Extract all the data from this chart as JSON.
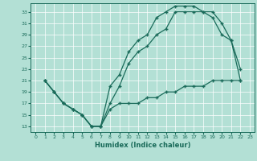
{
  "xlabel": "Humidex (Indice chaleur)",
  "bg_color": "#b3e0d5",
  "line_color": "#1a6b5a",
  "xlim": [
    -0.5,
    23.5
  ],
  "ylim": [
    12,
    34.5
  ],
  "xticks": [
    0,
    1,
    2,
    3,
    4,
    5,
    6,
    7,
    8,
    9,
    10,
    11,
    12,
    13,
    14,
    15,
    16,
    17,
    18,
    19,
    20,
    21,
    22,
    23
  ],
  "yticks": [
    13,
    15,
    17,
    19,
    21,
    23,
    25,
    27,
    29,
    31,
    33
  ],
  "line1_x": [
    1,
    2,
    3,
    4,
    5,
    6,
    7,
    8,
    9,
    10,
    11,
    12,
    13,
    14,
    15,
    16,
    17,
    18,
    19,
    20,
    21,
    22
  ],
  "line1_y": [
    21,
    19,
    17,
    16,
    15,
    13,
    13,
    20,
    22,
    26,
    28,
    29,
    32,
    33,
    34,
    34,
    34,
    33,
    33,
    31,
    28,
    23
  ],
  "line2_x": [
    1,
    2,
    3,
    4,
    5,
    6,
    7,
    8,
    9,
    10,
    11,
    12,
    13,
    14,
    15,
    16,
    17,
    18,
    19,
    20,
    21,
    22
  ],
  "line2_y": [
    21,
    19,
    17,
    16,
    15,
    13,
    13,
    17,
    20,
    24,
    26,
    27,
    29,
    30,
    33,
    33,
    33,
    33,
    32,
    29,
    28,
    21
  ],
  "line3_x": [
    1,
    2,
    3,
    4,
    5,
    6,
    7,
    8,
    9,
    10,
    11,
    12,
    13,
    14,
    15,
    16,
    17,
    18,
    19,
    20,
    21,
    22
  ],
  "line3_y": [
    21,
    19,
    17,
    16,
    15,
    13,
    13,
    16,
    17,
    17,
    17,
    18,
    18,
    19,
    19,
    20,
    20,
    20,
    21,
    21,
    21,
    21
  ],
  "marker": "+"
}
